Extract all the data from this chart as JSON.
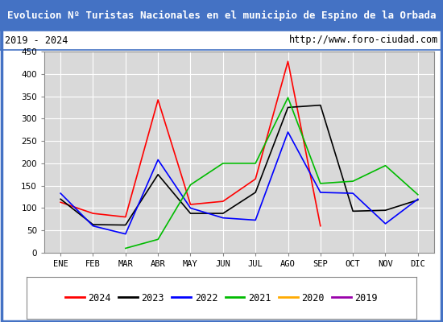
{
  "title": "Evolucion Nº Turistas Nacionales en el municipio de Espino de la Orbada",
  "subtitle_left": "2019 - 2024",
  "subtitle_right": "http://www.foro-ciudad.com",
  "months": [
    "ENE",
    "FEB",
    "MAR",
    "ABR",
    "MAY",
    "JUN",
    "JUL",
    "AGO",
    "SEP",
    "OCT",
    "NOV",
    "DIC"
  ],
  "series": {
    "2024": {
      "color": "#ff0000",
      "data": [
        113,
        88,
        80,
        342,
        108,
        115,
        165,
        428,
        60,
        null,
        null,
        null
      ]
    },
    "2023": {
      "color": "#000000",
      "data": [
        120,
        63,
        62,
        175,
        88,
        88,
        135,
        325,
        330,
        93,
        95,
        118
      ]
    },
    "2022": {
      "color": "#0000ff",
      "data": [
        133,
        60,
        42,
        208,
        100,
        78,
        73,
        270,
        135,
        133,
        65,
        120
      ]
    },
    "2021": {
      "color": "#00bb00",
      "data": [
        null,
        null,
        10,
        30,
        152,
        200,
        200,
        347,
        155,
        160,
        195,
        130
      ]
    },
    "2020": {
      "color": "#ffaa00",
      "data": [
        null,
        null,
        null,
        null,
        null,
        null,
        null,
        null,
        null,
        null,
        null,
        null
      ]
    },
    "2019": {
      "color": "#9900aa",
      "data": [
        null,
        null,
        null,
        null,
        null,
        null,
        null,
        null,
        null,
        null,
        null,
        null
      ]
    }
  },
  "ylim": [
    0,
    450
  ],
  "yticks": [
    0,
    50,
    100,
    150,
    200,
    250,
    300,
    350,
    400,
    450
  ],
  "title_bg": "#4472c4",
  "title_color": "#ffffff",
  "plot_bg": "#d9d9d9",
  "grid_color": "#ffffff",
  "border_color": "#4472c4",
  "legend_order": [
    "2024",
    "2023",
    "2022",
    "2021",
    "2020",
    "2019"
  ]
}
